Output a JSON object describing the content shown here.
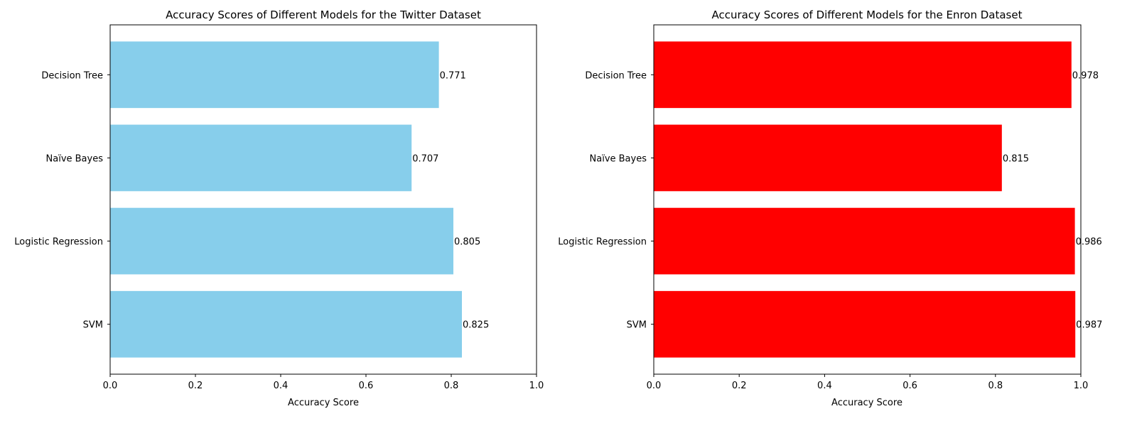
{
  "chart_data": [
    {
      "type": "bar",
      "orientation": "horizontal",
      "title": "Accuracy Scores of Different Models for the Twitter Dataset",
      "xlabel": "Accuracy Score",
      "ylabel": "",
      "categories": [
        "SVM",
        "Logistic Regression",
        "Naïve Bayes",
        "Decision Tree"
      ],
      "values": [
        0.825,
        0.805,
        0.707,
        0.771
      ],
      "value_labels": [
        "0.825",
        "0.805",
        "0.707",
        "0.771"
      ],
      "xlim": [
        0,
        1
      ],
      "xticks": [
        0,
        0.2,
        0.4,
        0.6,
        0.8,
        1
      ],
      "xtick_labels": [
        "0.0",
        "0.2",
        "0.4",
        "0.6",
        "0.8",
        "1.0"
      ],
      "bar_color": "#87ceeb",
      "grid": false,
      "legend": "none"
    },
    {
      "type": "bar",
      "orientation": "horizontal",
      "title": "Accuracy Scores of Different Models for the Enron Dataset",
      "xlabel": "Accuracy Score",
      "ylabel": "",
      "categories": [
        "SVM",
        "Logistic Regression",
        "Naïve Bayes",
        "Decision Tree"
      ],
      "values": [
        0.987,
        0.986,
        0.815,
        0.978
      ],
      "value_labels": [
        "0.987",
        "0.986",
        "0.815",
        "0.978"
      ],
      "xlim": [
        0,
        1
      ],
      "xticks": [
        0,
        0.2,
        0.4,
        0.6,
        0.8,
        1
      ],
      "xtick_labels": [
        "0.0",
        "0.2",
        "0.4",
        "0.6",
        "0.8",
        "1.0"
      ],
      "bar_color": "#ff0000",
      "grid": false,
      "legend": "none"
    }
  ]
}
